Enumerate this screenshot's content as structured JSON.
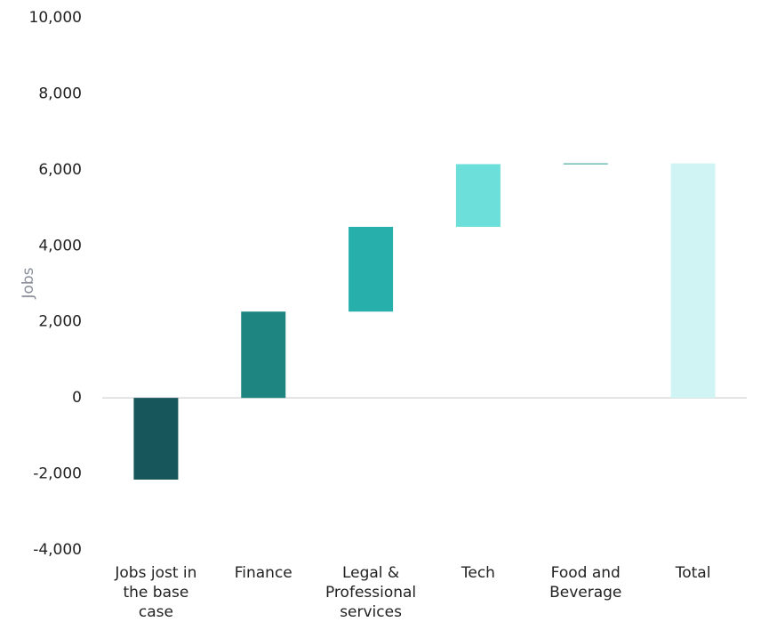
{
  "chart_data": {
    "type": "waterfall",
    "categories": [
      "Jobs jost in the base case",
      "Finance",
      "Legal & Professional services",
      "Tech",
      "Food and Beverage",
      "Total"
    ],
    "values": [
      -2150,
      2270,
      2230,
      1650,
      20,
      6170
    ],
    "colors": [
      "#17565a",
      "#1e8580",
      "#27afac",
      "#6ddfdb",
      "#2a9a8f",
      "#d0f3f3"
    ],
    "ylabel": "Jobs",
    "ylim": [
      -4000,
      10000
    ],
    "yticks": [
      {
        "value": -4000,
        "label": "-4,000"
      },
      {
        "value": -2000,
        "label": "-2,000"
      },
      0,
      {
        "value": 2000,
        "label": "2,000"
      },
      {
        "value": 4000,
        "label": "4,000"
      },
      {
        "value": 6000,
        "label": "6,000"
      },
      {
        "value": 8000,
        "label": "8,000"
      },
      {
        "value": 10000,
        "label": "10,000"
      }
    ]
  }
}
